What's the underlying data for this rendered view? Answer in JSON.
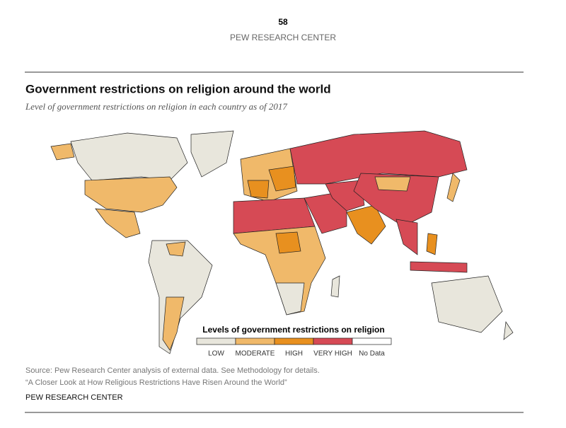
{
  "page_number": "58",
  "header": "PEW RESEARCH CENTER",
  "title": "Government restrictions on religion around the world",
  "subtitle": "Level of government restrictions on religion in each country as of 2017",
  "legend": {
    "title": "Levels of government restrictions on religion",
    "items": [
      {
        "label": "LOW",
        "color": "#e8e6dc"
      },
      {
        "label": "MODERATE",
        "color": "#f0b96a"
      },
      {
        "label": "HIGH",
        "color": "#e8901f"
      },
      {
        "label": "VERY HIGH",
        "color": "#d64a55"
      },
      {
        "label": "No Data",
        "color": "#ffffff"
      }
    ]
  },
  "source": [
    "Source: Pew Research Center analysis of external data. See Methodology for details.",
    "“A Closer Look at How Religious Restrictions Have Risen Around the World”"
  ],
  "footer": "PEW RESEARCH CENTER"
}
